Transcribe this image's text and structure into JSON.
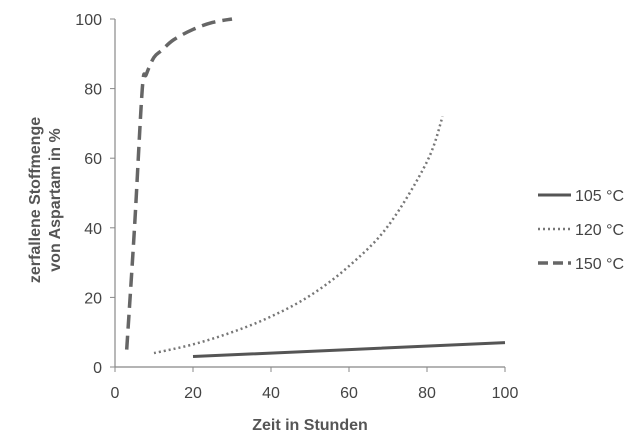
{
  "chart_data": {
    "type": "line",
    "xlabel": "Zeit in Stunden",
    "ylabel": [
      "zerfallene Stoffmenge",
      "von Aspartam in %"
    ],
    "xlim": [
      0,
      100
    ],
    "ylim": [
      0,
      100
    ],
    "xticks": [
      0,
      20,
      40,
      60,
      80,
      100
    ],
    "yticks": [
      0,
      20,
      40,
      60,
      80,
      100
    ],
    "grid": false,
    "legend_position": "right",
    "series": [
      {
        "name": "105 °C",
        "style": "solid",
        "color": "#555555",
        "x": [
          20,
          100
        ],
        "y": [
          3,
          7
        ]
      },
      {
        "name": "120 °C",
        "style": "dotted",
        "color": "#777777",
        "x": [
          10,
          20,
          30,
          40,
          50,
          60,
          70,
          80,
          84
        ],
        "y": [
          4,
          6.5,
          10,
          14.5,
          20.5,
          29,
          40.5,
          59,
          72
        ]
      },
      {
        "name": "150 °C",
        "style": "dashed",
        "color": "#666666",
        "x": [
          3,
          5,
          7,
          8,
          10,
          12,
          15,
          20,
          25,
          30
        ],
        "y": [
          5,
          40,
          80,
          84,
          89,
          91,
          94,
          97,
          99,
          100
        ]
      }
    ]
  }
}
